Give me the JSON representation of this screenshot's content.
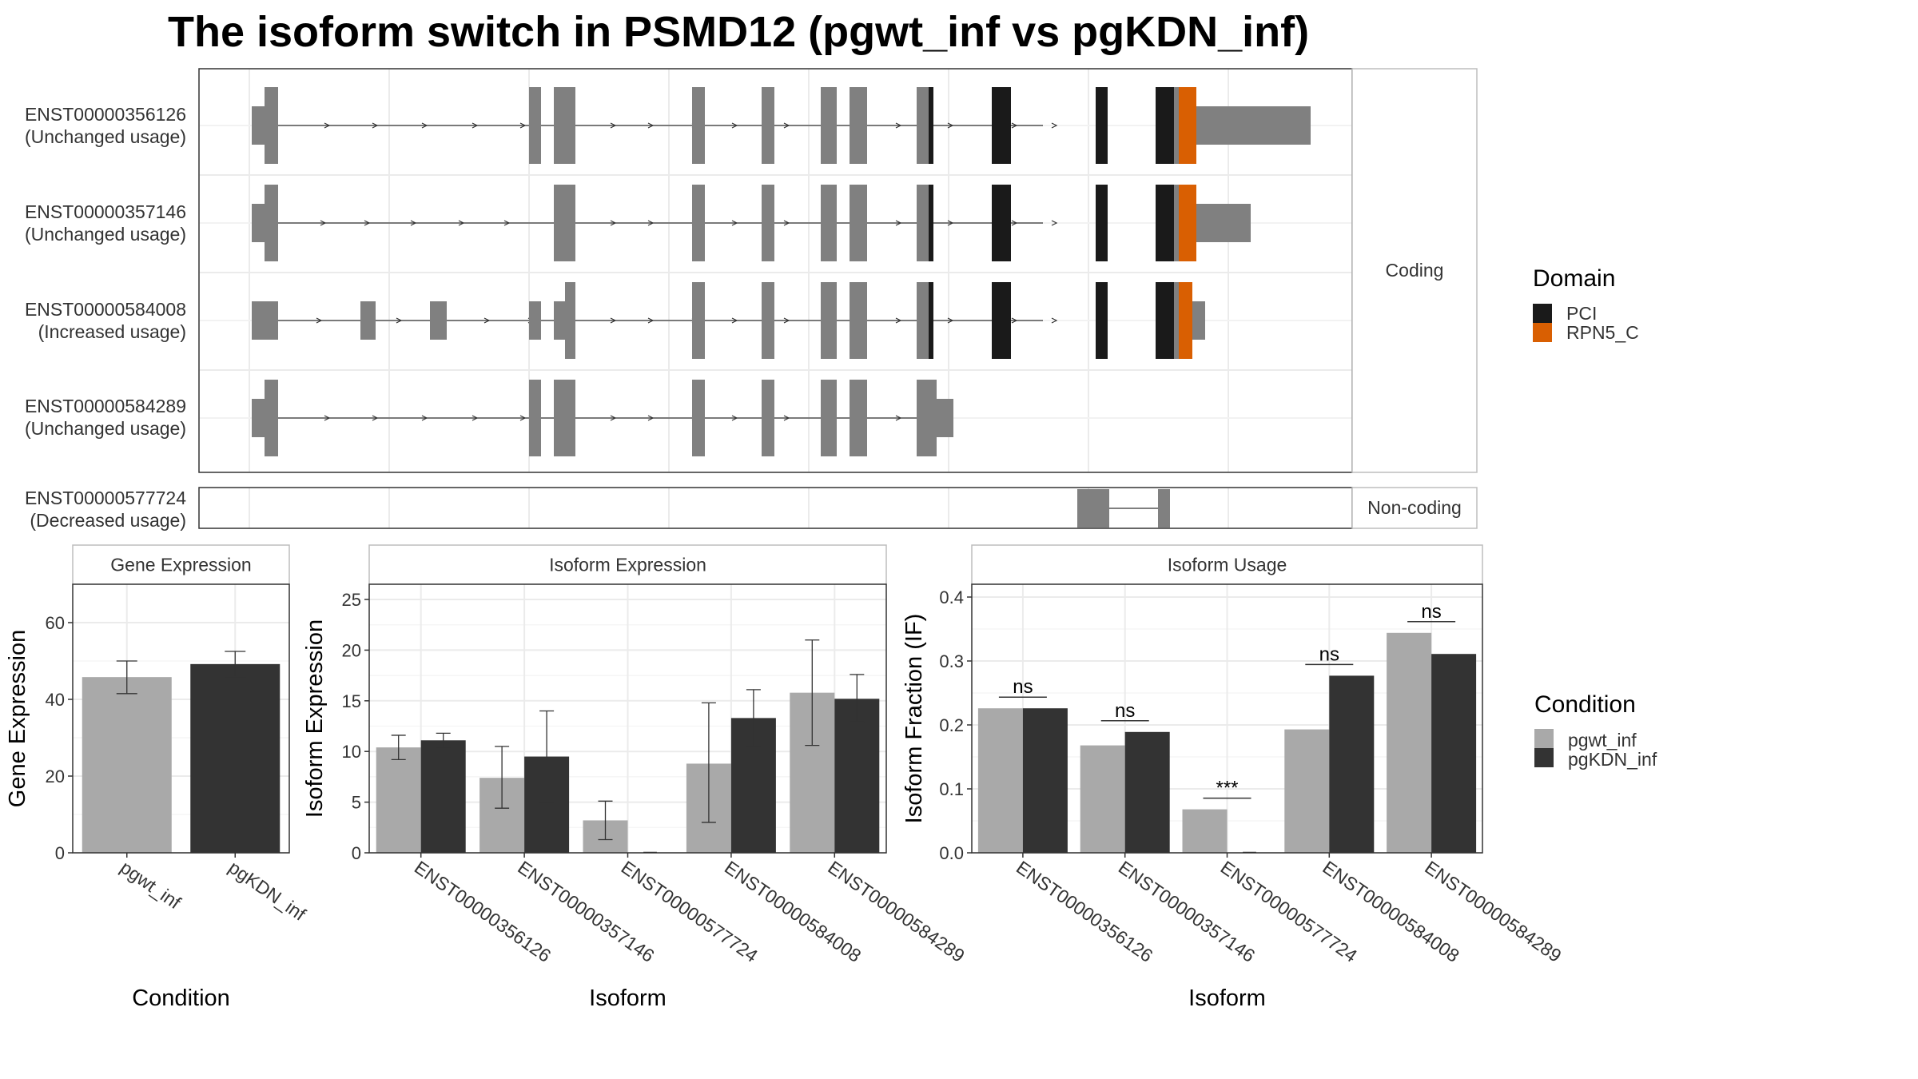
{
  "title": "The isoform switch in PSMD12 (pgwt_inf vs pgKDN_inf)",
  "colors": {
    "exon": "#808080",
    "pci": "#1a1a1a",
    "rpn5c": "#d95f02",
    "pgwt_inf": "#a9a9a9",
    "pgKDN_inf": "#333333",
    "grid": "#ebebeb",
    "panel_border": "#333333",
    "strip_border": "#bdbdbd"
  },
  "structure": {
    "strips": {
      "coding": "Coding",
      "noncoding": "Non-coding"
    },
    "transcripts": [
      {
        "id": "ENST00000356126",
        "usage": "(Unchanged usage)",
        "group": "coding"
      },
      {
        "id": "ENST00000357146",
        "usage": "(Unchanged usage)",
        "group": "coding"
      },
      {
        "id": "ENST00000584008",
        "usage": "(Increased usage)",
        "group": "coding"
      },
      {
        "id": "ENST00000584289",
        "usage": "(Unchanged usage)",
        "group": "coding"
      },
      {
        "id": "ENST00000577724",
        "usage": "(Decreased usage)",
        "group": "noncoding"
      }
    ]
  },
  "legend_domain": {
    "title": "Domain",
    "items": [
      {
        "label": "PCI",
        "color": "#1a1a1a"
      },
      {
        "label": "RPN5_C",
        "color": "#d95f02"
      }
    ]
  },
  "legend_condition": {
    "title": "Condition",
    "items": [
      {
        "label": "pgwt_inf",
        "color": "#a9a9a9"
      },
      {
        "label": "pgKDN_inf",
        "color": "#333333"
      }
    ]
  },
  "chart_data": [
    {
      "type": "bar",
      "title": "Gene Expression",
      "xlabel": "Condition",
      "ylabel": "Gene Expression",
      "ylim": [
        0,
        70
      ],
      "yticks": [
        0,
        20,
        40,
        60
      ],
      "categories": [
        "pgwt_inf",
        "pgKDN_inf"
      ],
      "values": [
        45.8,
        49.2
      ],
      "errors": [
        [
          41.5,
          50.0
        ],
        [
          45.8,
          52.5
        ]
      ]
    },
    {
      "type": "bar",
      "title": "Isoform Expression",
      "xlabel": "Isoform",
      "ylabel": "Isoform Expression",
      "ylim": [
        0,
        26.5
      ],
      "yticks": [
        0,
        5,
        10,
        15,
        20,
        25
      ],
      "categories": [
        "ENST00000356126",
        "ENST00000357146",
        "ENST00000577724",
        "ENST00000584008",
        "ENST00000584289"
      ],
      "series": [
        {
          "name": "pgwt_inf",
          "values": [
            10.4,
            7.4,
            3.2,
            8.8,
            15.8
          ],
          "errors": [
            [
              9.2,
              11.6
            ],
            [
              4.4,
              10.5
            ],
            [
              1.3,
              5.1
            ],
            [
              3.0,
              14.8
            ],
            [
              10.6,
              21.0
            ]
          ]
        },
        {
          "name": "pgKDN_inf",
          "values": [
            11.1,
            9.5,
            0.0,
            13.3,
            15.2
          ],
          "errors": [
            [
              10.4,
              11.8
            ],
            [
              4.9,
              14.0
            ],
            [
              0.0,
              0.0
            ],
            [
              10.5,
              16.1
            ],
            [
              12.9,
              17.6
            ]
          ]
        }
      ]
    },
    {
      "type": "bar",
      "title": "Isoform Usage",
      "xlabel": "Isoform",
      "ylabel": "Isoform Fraction (IF)",
      "ylim": [
        0,
        0.42
      ],
      "yticks": [
        "0.0",
        "0.1",
        "0.2",
        "0.3",
        "0.4"
      ],
      "categories": [
        "ENST00000356126",
        "ENST00000357146",
        "ENST00000577724",
        "ENST00000584008",
        "ENST00000584289"
      ],
      "series": [
        {
          "name": "pgwt_inf",
          "values": [
            0.226,
            0.168,
            0.068,
            0.193,
            0.344
          ]
        },
        {
          "name": "pgKDN_inf",
          "values": [
            0.226,
            0.189,
            0.0,
            0.277,
            0.311
          ]
        }
      ],
      "significance": [
        "ns",
        "ns",
        "***",
        "ns",
        "ns"
      ]
    }
  ]
}
